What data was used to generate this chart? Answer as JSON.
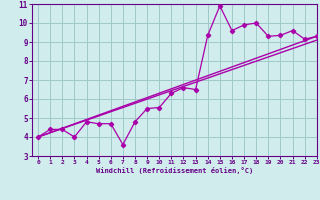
{
  "xlabel": "Windchill (Refroidissement éolien,°C)",
  "x_data": [
    0,
    1,
    2,
    3,
    4,
    5,
    6,
    7,
    8,
    9,
    10,
    11,
    12,
    13,
    14,
    15,
    16,
    17,
    18,
    19,
    20,
    21,
    22,
    23
  ],
  "y_scatter": [
    4.0,
    4.4,
    4.4,
    4.0,
    4.8,
    4.7,
    4.7,
    3.6,
    4.8,
    5.5,
    5.55,
    6.3,
    6.6,
    6.5,
    9.35,
    10.9,
    9.6,
    9.9,
    10.0,
    9.3,
    9.35,
    9.6,
    9.15,
    9.3
  ],
  "y_line1_x": [
    0,
    23
  ],
  "y_line1_y": [
    4.0,
    9.3
  ],
  "y_line2_x": [
    0,
    23
  ],
  "y_line2_y": [
    4.0,
    9.1
  ],
  "line_color": "#aa00aa",
  "bg_color": "#d0ecec",
  "grid_color": "#a0c8c8",
  "axis_color": "#660088",
  "text_color": "#660088",
  "ylim": [
    3,
    11
  ],
  "xlim": [
    -0.5,
    23
  ],
  "yticks": [
    3,
    4,
    5,
    6,
    7,
    8,
    9,
    10,
    11
  ],
  "xticks": [
    0,
    1,
    2,
    3,
    4,
    5,
    6,
    7,
    8,
    9,
    10,
    11,
    12,
    13,
    14,
    15,
    16,
    17,
    18,
    19,
    20,
    21,
    22,
    23
  ]
}
